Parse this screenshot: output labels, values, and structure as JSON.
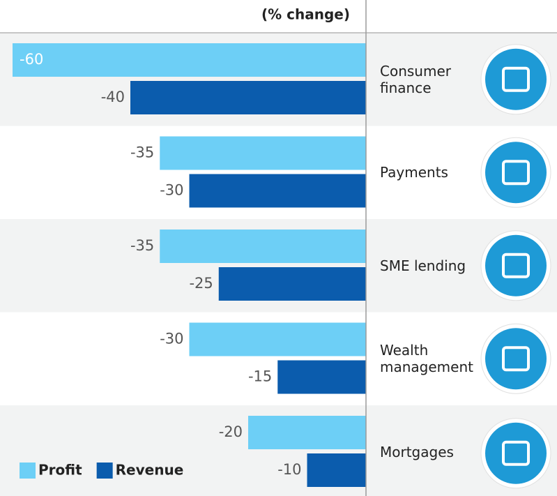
{
  "chart_data": {
    "type": "barh",
    "axis_label": "(% change)",
    "categories": [
      "Consumer finance",
      "Payments",
      "SME lending",
      "Wealth management",
      "Mortgages"
    ],
    "series": [
      {
        "name": "Profit",
        "color": "#6dcff6",
        "values": [
          -60,
          -35,
          -35,
          -30,
          -20
        ]
      },
      {
        "name": "Revenue",
        "color": "#0b5cad",
        "values": [
          -40,
          -30,
          -25,
          -15,
          -10
        ]
      }
    ],
    "xlim": [
      -60,
      0
    ]
  }
}
